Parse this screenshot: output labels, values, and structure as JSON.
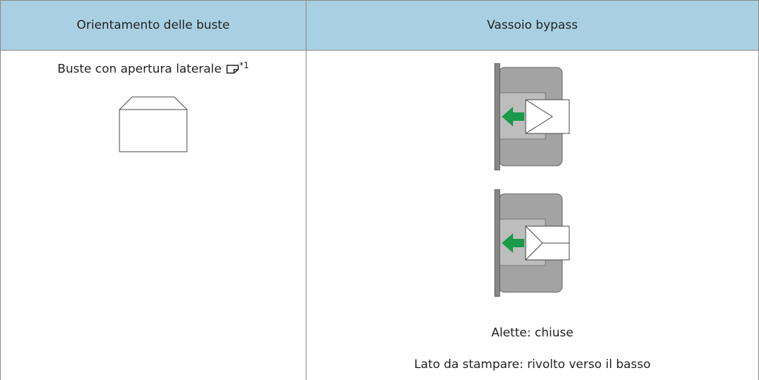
{
  "table": {
    "header": [
      "Orientamento delle buste",
      "Vassoio bypass"
    ],
    "rows": [
      [
        {
          "label": "Buste con apertura laterale",
          "footnote": "*1"
        },
        [
          "Alette: chiuse",
          "Lato da stampare: rivolto verso il basso"
        ]
      ]
    ]
  }
}
